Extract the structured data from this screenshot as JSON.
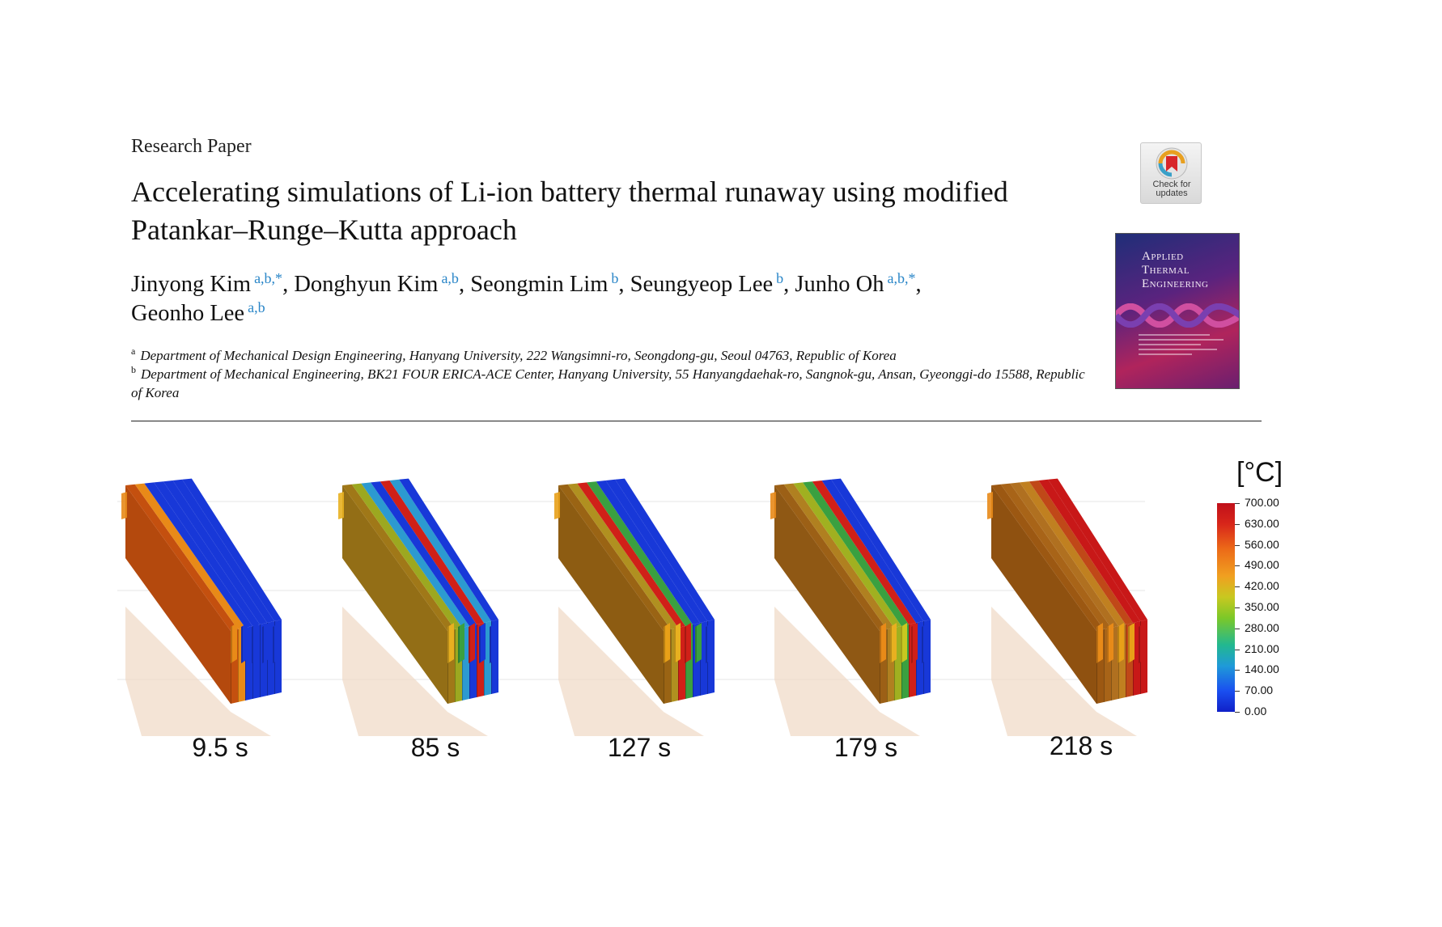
{
  "paper": {
    "section_label": "Research Paper",
    "title_line1": "Accelerating simulations of Li-ion battery thermal runaway using modified",
    "title_line2": "Patankar–Runge–Kutta approach",
    "authors": [
      {
        "name": "Jinyong Kim",
        "aff": "a,b,*"
      },
      {
        "name": "Donghyun Kim",
        "aff": "a,b"
      },
      {
        "name": "Seongmin Lim",
        "aff": "b"
      },
      {
        "name": "Seungyeop Lee",
        "aff": "b"
      },
      {
        "name": "Junho Oh",
        "aff": "a,b,*"
      },
      {
        "name": "Geonho Lee",
        "aff": "a,b"
      }
    ],
    "affiliations": [
      {
        "letter": "a",
        "text": "Department of Mechanical Design Engineering, Hanyang University, 222 Wangsimni-ro, Seongdong-gu, Seoul 04763, Republic of Korea"
      },
      {
        "letter": "b",
        "text": "Department of Mechanical Engineering, BK21 FOUR ERICA-ACE Center, Hanyang University, 55 Hanyangdaehak-ro, Sangnok-gu, Ansan, Gyeonggi-do 15588, Republic of Korea"
      }
    ],
    "check_updates": {
      "line1": "Check for",
      "line2": "updates"
    },
    "journal_cover_title": [
      "Applied",
      "Thermal",
      "Engineering"
    ]
  },
  "figure": {
    "frames": [
      {
        "time": "9.5 s"
      },
      {
        "time": "85 s"
      },
      {
        "time": "127 s"
      },
      {
        "time": "179 s"
      },
      {
        "time": "218 s"
      }
    ],
    "colorbar": {
      "unit": "[°C]",
      "ticks": [
        "700.00",
        "630.00",
        "560.00",
        "490.00",
        "420.00",
        "350.00",
        "280.00",
        "210.00",
        "140.00",
        "70.00",
        "0.00"
      ],
      "colors": [
        "#1020c8",
        "#1a4ff0",
        "#1f9ad8",
        "#22b890",
        "#7cc828",
        "#c8c820",
        "#f0a020",
        "#ec6a18",
        "#d8261a",
        "#c0101a"
      ]
    }
  }
}
